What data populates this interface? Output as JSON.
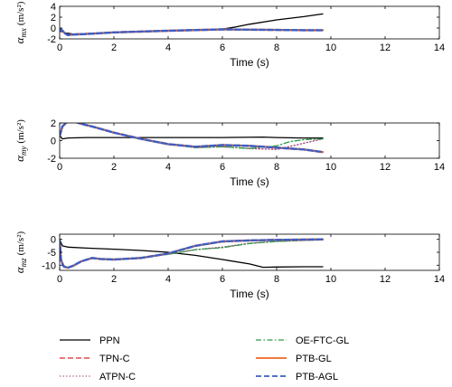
{
  "chart_data": [
    {
      "type": "line",
      "ylabel": "α_mx (m/s²)",
      "ylabel_main": "α",
      "ylabel_sub": "mx",
      "ylabel_unit": "(m/s²)",
      "xlabel": "Time (s)",
      "xlim": [
        0,
        14
      ],
      "ylim": [
        -2,
        4
      ],
      "xticks": [
        0,
        2,
        4,
        6,
        8,
        10,
        12,
        14
      ],
      "yticks": [
        -2,
        0,
        2,
        4
      ],
      "series": [
        {
          "name": "PPN",
          "x": [
            0,
            0.2,
            0.5,
            1,
            2,
            4,
            6,
            6.5,
            7,
            8,
            9,
            9.7
          ],
          "y": [
            -0.5,
            -0.9,
            -1.1,
            -1.0,
            -0.8,
            -0.5,
            -0.2,
            0.2,
            0.7,
            1.5,
            2.1,
            2.6
          ]
        },
        {
          "name": "TPN-C",
          "x": [
            0,
            0.05,
            0.2,
            0.3,
            0.5,
            1,
            2,
            4,
            6,
            7,
            8,
            9,
            9.7
          ],
          "y": [
            -0.6,
            -0.2,
            -1.0,
            -1.3,
            -1.2,
            -1.1,
            -0.8,
            -0.5,
            -0.25,
            -0.3,
            -0.35,
            -0.4,
            -0.4
          ]
        },
        {
          "name": "ATPN-C",
          "x": [
            0,
            0.05,
            0.2,
            0.3,
            0.5,
            1,
            2,
            4,
            6,
            7,
            8,
            9,
            9.7
          ],
          "y": [
            -0.6,
            -0.3,
            -1.0,
            -1.3,
            -1.2,
            -1.1,
            -0.8,
            -0.5,
            -0.25,
            -0.3,
            -0.35,
            -0.4,
            -0.4
          ]
        },
        {
          "name": "OE-FTC-GL",
          "x": [
            0,
            0.05,
            0.2,
            0.3,
            0.5,
            1,
            2,
            4,
            6,
            7,
            8,
            9,
            9.7
          ],
          "y": [
            -0.6,
            -0.2,
            -1.0,
            -1.3,
            -1.2,
            -1.1,
            -0.8,
            -0.5,
            -0.25,
            -0.3,
            -0.35,
            -0.45,
            -0.45
          ]
        },
        {
          "name": "PTB-GL",
          "x": [
            0,
            0.05,
            0.2,
            0.3,
            0.5,
            1,
            2,
            4,
            6,
            7,
            8,
            9,
            9.7
          ],
          "y": [
            -0.6,
            -0.2,
            -1.0,
            -1.3,
            -1.2,
            -1.1,
            -0.8,
            -0.5,
            -0.25,
            -0.3,
            -0.35,
            -0.4,
            -0.4
          ]
        },
        {
          "name": "PTB-AGL",
          "x": [
            0,
            0.05,
            0.2,
            0.3,
            0.5,
            1,
            2,
            4,
            6,
            7,
            8,
            9,
            9.7
          ],
          "y": [
            -0.6,
            -0.2,
            -1.0,
            -1.3,
            -1.2,
            -1.1,
            -0.8,
            -0.5,
            -0.25,
            -0.3,
            -0.35,
            -0.4,
            -0.4
          ]
        }
      ]
    },
    {
      "type": "line",
      "ylabel": "α_my (m/s²)",
      "ylabel_main": "α",
      "ylabel_sub": "my",
      "ylabel_unit": "(m/s²)",
      "xlabel": "Time (s)",
      "xlim": [
        0,
        14
      ],
      "ylim": [
        -2,
        2
      ],
      "xticks": [
        0,
        2,
        4,
        6,
        8,
        10,
        12,
        14
      ],
      "yticks": [
        -2,
        0,
        2
      ],
      "series": [
        {
          "name": "PPN",
          "x": [
            0,
            0.1,
            0.3,
            1,
            2,
            4,
            6,
            7.5,
            8,
            9,
            9.7
          ],
          "y": [
            0.6,
            0.2,
            0.3,
            0.35,
            0.35,
            0.35,
            0.35,
            0.4,
            0.35,
            0.3,
            0.3
          ]
        },
        {
          "name": "TPN-C",
          "x": [
            0,
            0.1,
            0.3,
            0.5,
            0.8,
            1.2,
            2,
            3,
            4,
            5,
            6,
            7,
            8,
            9,
            9.7
          ],
          "y": [
            0.5,
            1.6,
            2.2,
            2.2,
            1.9,
            1.6,
            0.9,
            0.2,
            -0.4,
            -0.7,
            -0.5,
            -0.6,
            -0.8,
            -1.0,
            -1.3
          ]
        },
        {
          "name": "ATPN-C",
          "x": [
            0,
            0.1,
            0.3,
            0.5,
            0.8,
            1.2,
            2,
            3,
            4,
            5,
            6,
            7,
            8,
            9,
            9.7
          ],
          "y": [
            0.5,
            1.6,
            2.2,
            2.2,
            1.9,
            1.6,
            0.9,
            0.2,
            -0.4,
            -0.8,
            -0.7,
            -0.9,
            -1.0,
            -0.3,
            0.2
          ]
        },
        {
          "name": "OE-FTC-GL",
          "x": [
            0,
            0.1,
            0.3,
            0.5,
            0.8,
            1.2,
            2,
            3,
            4,
            5,
            6,
            7,
            8,
            8.5,
            9,
            9.7
          ],
          "y": [
            0.5,
            1.6,
            2.2,
            2.2,
            1.9,
            1.6,
            0.9,
            0.2,
            -0.4,
            -0.8,
            -0.7,
            -0.9,
            -0.6,
            -0.1,
            0.1,
            0.2
          ]
        },
        {
          "name": "PTB-GL",
          "x": [
            0,
            0.1,
            0.3,
            0.5,
            0.8,
            1.2,
            2,
            3,
            4,
            5,
            6,
            7,
            8,
            9,
            9.7
          ],
          "y": [
            0.5,
            1.6,
            2.2,
            2.2,
            1.9,
            1.6,
            0.9,
            0.2,
            -0.4,
            -0.7,
            -0.5,
            -0.6,
            -0.8,
            -1.0,
            -1.3
          ]
        },
        {
          "name": "PTB-AGL",
          "x": [
            0,
            0.1,
            0.3,
            0.5,
            0.8,
            1.2,
            2,
            3,
            4,
            5,
            6,
            7,
            8,
            9,
            9.7
          ],
          "y": [
            0.5,
            1.6,
            2.2,
            2.2,
            1.9,
            1.6,
            0.9,
            0.2,
            -0.4,
            -0.7,
            -0.5,
            -0.6,
            -0.8,
            -1.0,
            -1.3
          ]
        }
      ]
    },
    {
      "type": "line",
      "ylabel": "α_mz (m/s²)",
      "ylabel_main": "α",
      "ylabel_sub": "mz",
      "ylabel_unit": "(m/s²)",
      "xlabel": "Time (s)",
      "xlim": [
        0,
        14
      ],
      "ylim": [
        -12,
        2
      ],
      "xticks": [
        0,
        2,
        4,
        6,
        8,
        10,
        12,
        14
      ],
      "yticks": [
        -10,
        -5,
        0
      ],
      "series": [
        {
          "name": "PPN",
          "x": [
            0,
            0.1,
            0.3,
            1,
            2,
            3,
            4,
            5,
            6,
            7,
            7.5,
            8,
            9,
            9.7
          ],
          "y": [
            0,
            -2.5,
            -3.0,
            -3.4,
            -3.8,
            -4.3,
            -5.0,
            -6.2,
            -7.8,
            -9.5,
            -10.8,
            -10.7,
            -10.6,
            -10.6
          ]
        },
        {
          "name": "TPN-C",
          "x": [
            0,
            0.05,
            0.15,
            0.3,
            0.5,
            0.8,
            1.2,
            1.5,
            2,
            3,
            4,
            5,
            6,
            7,
            8,
            9,
            9.7
          ],
          "y": [
            0,
            -8,
            -10.5,
            -11,
            -10.2,
            -8.5,
            -7.2,
            -7.6,
            -7.8,
            -7.2,
            -5.5,
            -2.5,
            -0.8,
            -0.4,
            -0.2,
            -0.1,
            0
          ]
        },
        {
          "name": "ATPN-C",
          "x": [
            0,
            0.05,
            0.15,
            0.3,
            0.5,
            0.8,
            1.2,
            1.5,
            2,
            3,
            4,
            5,
            6,
            7,
            8,
            9,
            9.7
          ],
          "y": [
            0,
            -8,
            -10.5,
            -11,
            -10.2,
            -8.5,
            -7.2,
            -7.6,
            -7.8,
            -7.0,
            -5.8,
            -4.0,
            -3.0,
            -1.5,
            -0.8,
            -0.4,
            -0.2
          ]
        },
        {
          "name": "OE-FTC-GL",
          "x": [
            0,
            0.05,
            0.15,
            0.3,
            0.5,
            0.8,
            1.2,
            1.5,
            2,
            3,
            4,
            5,
            6,
            7,
            8,
            9,
            9.7
          ],
          "y": [
            0,
            -8,
            -10.5,
            -11,
            -10.2,
            -8.5,
            -7.2,
            -7.6,
            -7.8,
            -7.0,
            -5.8,
            -4.0,
            -3.2,
            -1.6,
            -0.8,
            -0.4,
            -0.2
          ]
        },
        {
          "name": "PTB-GL",
          "x": [
            0,
            0.05,
            0.15,
            0.3,
            0.5,
            0.8,
            1.2,
            1.5,
            2,
            3,
            4,
            5,
            6,
            7,
            8,
            9,
            9.7
          ],
          "y": [
            0,
            -8,
            -10.5,
            -11,
            -10.2,
            -8.5,
            -7.2,
            -7.6,
            -7.8,
            -7.2,
            -5.5,
            -2.5,
            -0.8,
            -0.4,
            -0.2,
            -0.1,
            0
          ]
        },
        {
          "name": "PTB-AGL",
          "x": [
            0,
            0.05,
            0.15,
            0.3,
            0.5,
            0.8,
            1.2,
            1.5,
            2,
            3,
            4,
            5,
            6,
            7,
            8,
            9,
            9.7
          ],
          "y": [
            0,
            -8,
            -10.5,
            -11,
            -10.2,
            -8.5,
            -7.2,
            -7.6,
            -7.8,
            -7.2,
            -5.5,
            -2.5,
            -0.8,
            -0.4,
            -0.2,
            -0.1,
            0
          ]
        }
      ]
    }
  ],
  "legend": {
    "placement": "bottom",
    "items": [
      {
        "name": "PPN",
        "color": "#000000",
        "dash": "solid"
      },
      {
        "name": "TPN-C",
        "color": "#e8232a",
        "dash": "dashed"
      },
      {
        "name": "ATPN-C",
        "color": "#a0407a",
        "dash": "dotted"
      },
      {
        "name": "OE-FTC-GL",
        "color": "#2e9a48",
        "dash": "dashdot"
      },
      {
        "name": "PTB-GL",
        "color": "#f26522",
        "dash": "solid"
      },
      {
        "name": "PTB-AGL",
        "color": "#3a5fc8",
        "dash": "dashed"
      }
    ]
  }
}
